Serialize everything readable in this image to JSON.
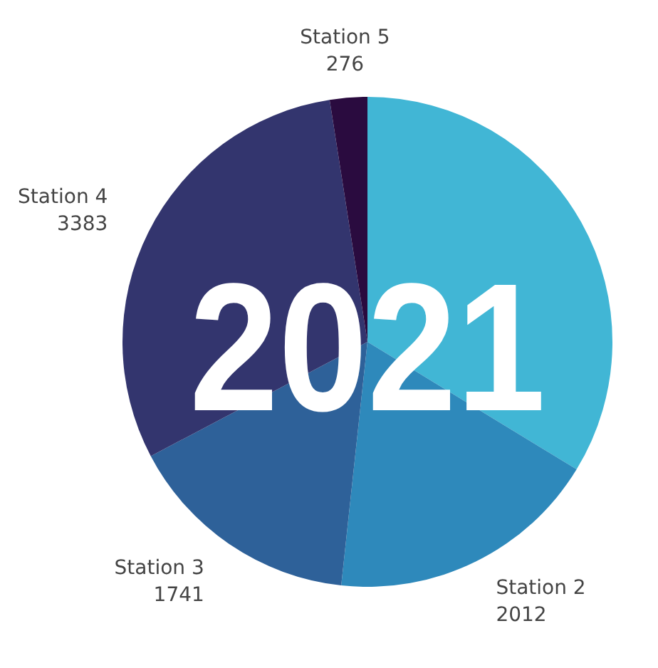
{
  "chart_data": {
    "type": "pie",
    "title": "2021",
    "categories": [
      null,
      "Station 2",
      "Station 3",
      "Station 4",
      "Station 5"
    ],
    "values": [
      3770,
      2012,
      1741,
      3383,
      276
    ],
    "value_labels": [
      null,
      "2012",
      "1741",
      "3383",
      "276"
    ],
    "colors": [
      "#41b6d5",
      "#2e89bb",
      "#2e6199",
      "#33356e",
      "#2a0b3f"
    ]
  }
}
